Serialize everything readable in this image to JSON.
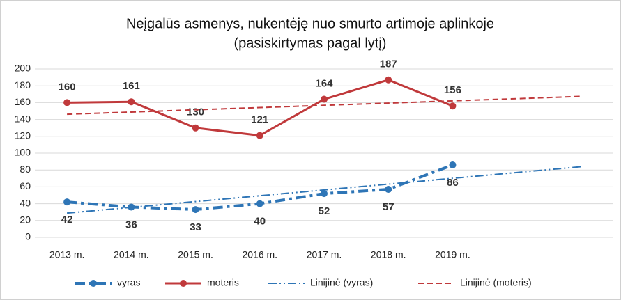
{
  "chart_data": {
    "type": "line",
    "title": "Neįgalūs asmenys, nukentėję nuo smurto artimoje aplinkoje",
    "subtitle": "(pasiskirtymas pagal lytį)",
    "categories": [
      "2013 m.",
      "2014 m.",
      "2015 m.",
      "2016 m.",
      "2017 m.",
      "2018 m.",
      "2019 m.",
      null,
      null
    ],
    "series": [
      {
        "name": "vyras",
        "color": "#2e75b6",
        "style": "dash-dot",
        "markers": true,
        "data_labels": "below",
        "values": [
          42,
          36,
          33,
          40,
          52,
          57,
          86,
          null,
          null
        ]
      },
      {
        "name": "moteris",
        "color": "#c0393b",
        "style": "solid",
        "markers": true,
        "data_labels": "above",
        "values": [
          160,
          161,
          130,
          121,
          164,
          187,
          156,
          null,
          null
        ]
      },
      {
        "name": "Linijinė (vyras)",
        "color": "#2e75b6",
        "style": "dash-dot-dot",
        "markers": false,
        "values": [
          28.8,
          35.6,
          42.5,
          49.4,
          56.3,
          63.2,
          70.1,
          77.0,
          83.9
        ]
      },
      {
        "name": "Linijinė (moteris)",
        "color": "#c0393b",
        "style": "dashed",
        "markers": false,
        "values": [
          146.2,
          148.8,
          151.5,
          154.1,
          156.8,
          159.4,
          162.1,
          164.7,
          167.4
        ]
      }
    ],
    "ylim": [
      0,
      200
    ],
    "yticks": [
      0,
      20,
      40,
      60,
      80,
      100,
      120,
      140,
      160,
      180,
      200
    ],
    "grid": true,
    "legend": "bottom"
  }
}
